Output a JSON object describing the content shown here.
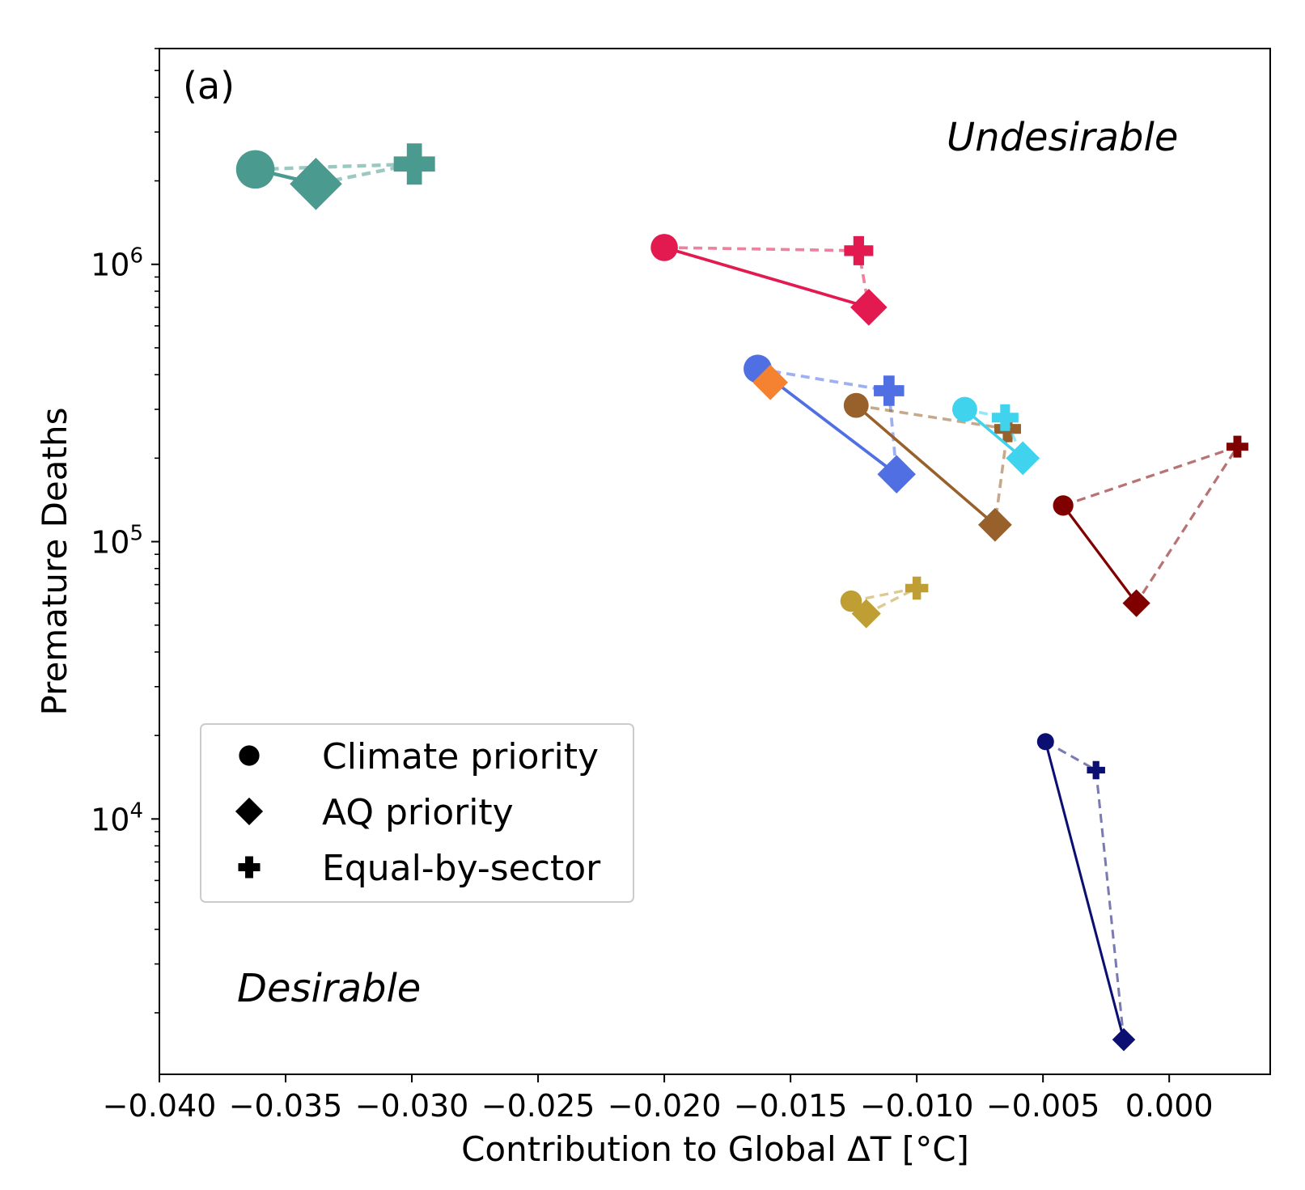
{
  "chart_data": {
    "type": "scatter",
    "panel_label": "(a)",
    "xlabel": "Contribution to Global ΔT [°C]",
    "ylabel": "Premature Deaths",
    "xlim": [
      -0.04,
      0.004
    ],
    "ylim": [
      1200,
      6000000
    ],
    "yscale": "log",
    "xticks": [
      -0.04,
      -0.035,
      -0.03,
      -0.025,
      -0.02,
      -0.015,
      -0.01,
      -0.005,
      0.0
    ],
    "xtick_labels": [
      "−0.040",
      "−0.035",
      "−0.030",
      "−0.025",
      "−0.020",
      "−0.015",
      "−0.010",
      "−0.005",
      "0.000"
    ],
    "yticks": [
      {
        "value": 10000,
        "base": "10",
        "exp": "4"
      },
      {
        "value": 100000,
        "base": "10",
        "exp": "5"
      },
      {
        "value": 1000000,
        "base": "10",
        "exp": "6"
      }
    ],
    "grid": false,
    "annotations": {
      "undesirable": "Undesirable",
      "desirable": "Desirable"
    },
    "legend": {
      "placement": "lower-left",
      "entries": [
        {
          "marker": "circle",
          "label": "Climate priority"
        },
        {
          "marker": "diamond",
          "label": "AQ priority"
        },
        {
          "marker": "plus",
          "label": "Equal-by-sector"
        }
      ]
    },
    "groups": [
      {
        "color": "#4b9a8f",
        "size": 1.7,
        "climate": [
          -0.0362,
          2200000
        ],
        "aq": [
          -0.0338,
          1950000
        ],
        "equal": [
          -0.0299,
          2300000
        ]
      },
      {
        "color": "#e31a4f",
        "size": 1.2,
        "climate": [
          -0.02,
          1150000
        ],
        "aq": [
          -0.0119,
          700000
        ],
        "equal": [
          -0.0123,
          1120000
        ]
      },
      {
        "color": "#4f6fe3",
        "size": 1.25,
        "climate": [
          -0.0163,
          420000
        ],
        "aq": [
          -0.0108,
          175000
        ],
        "equal": [
          -0.0111,
          350000
        ]
      },
      {
        "color": "#f58231",
        "size": 1.15,
        "single": [
          -0.0158,
          375000
        ]
      },
      {
        "color": "#98602a",
        "size": 1.1,
        "climate": [
          -0.0124,
          310000
        ],
        "aq": [
          -0.0069,
          115000
        ],
        "equal": [
          -0.0064,
          255000
        ]
      },
      {
        "color": "#3fd3ee",
        "size": 1.1,
        "climate": [
          -0.0081,
          300000
        ],
        "aq": [
          -0.0058,
          200000
        ],
        "equal": [
          -0.0065,
          280000
        ]
      },
      {
        "color": "#800000",
        "size": 0.9,
        "climate": [
          -0.0042,
          135000
        ],
        "aq": [
          -0.0013,
          60000
        ],
        "equal": [
          0.0027,
          220000
        ]
      },
      {
        "color": "#bf9f34",
        "size": 0.95,
        "climate": [
          -0.0126,
          61000
        ],
        "aq": [
          -0.012,
          55000
        ],
        "equal": [
          -0.01,
          68000
        ]
      },
      {
        "color": "#0b0f72",
        "size": 0.75,
        "climate": [
          -0.0049,
          19000
        ],
        "aq": [
          -0.0018,
          1600
        ],
        "equal": [
          -0.0029,
          15000
        ]
      }
    ]
  }
}
